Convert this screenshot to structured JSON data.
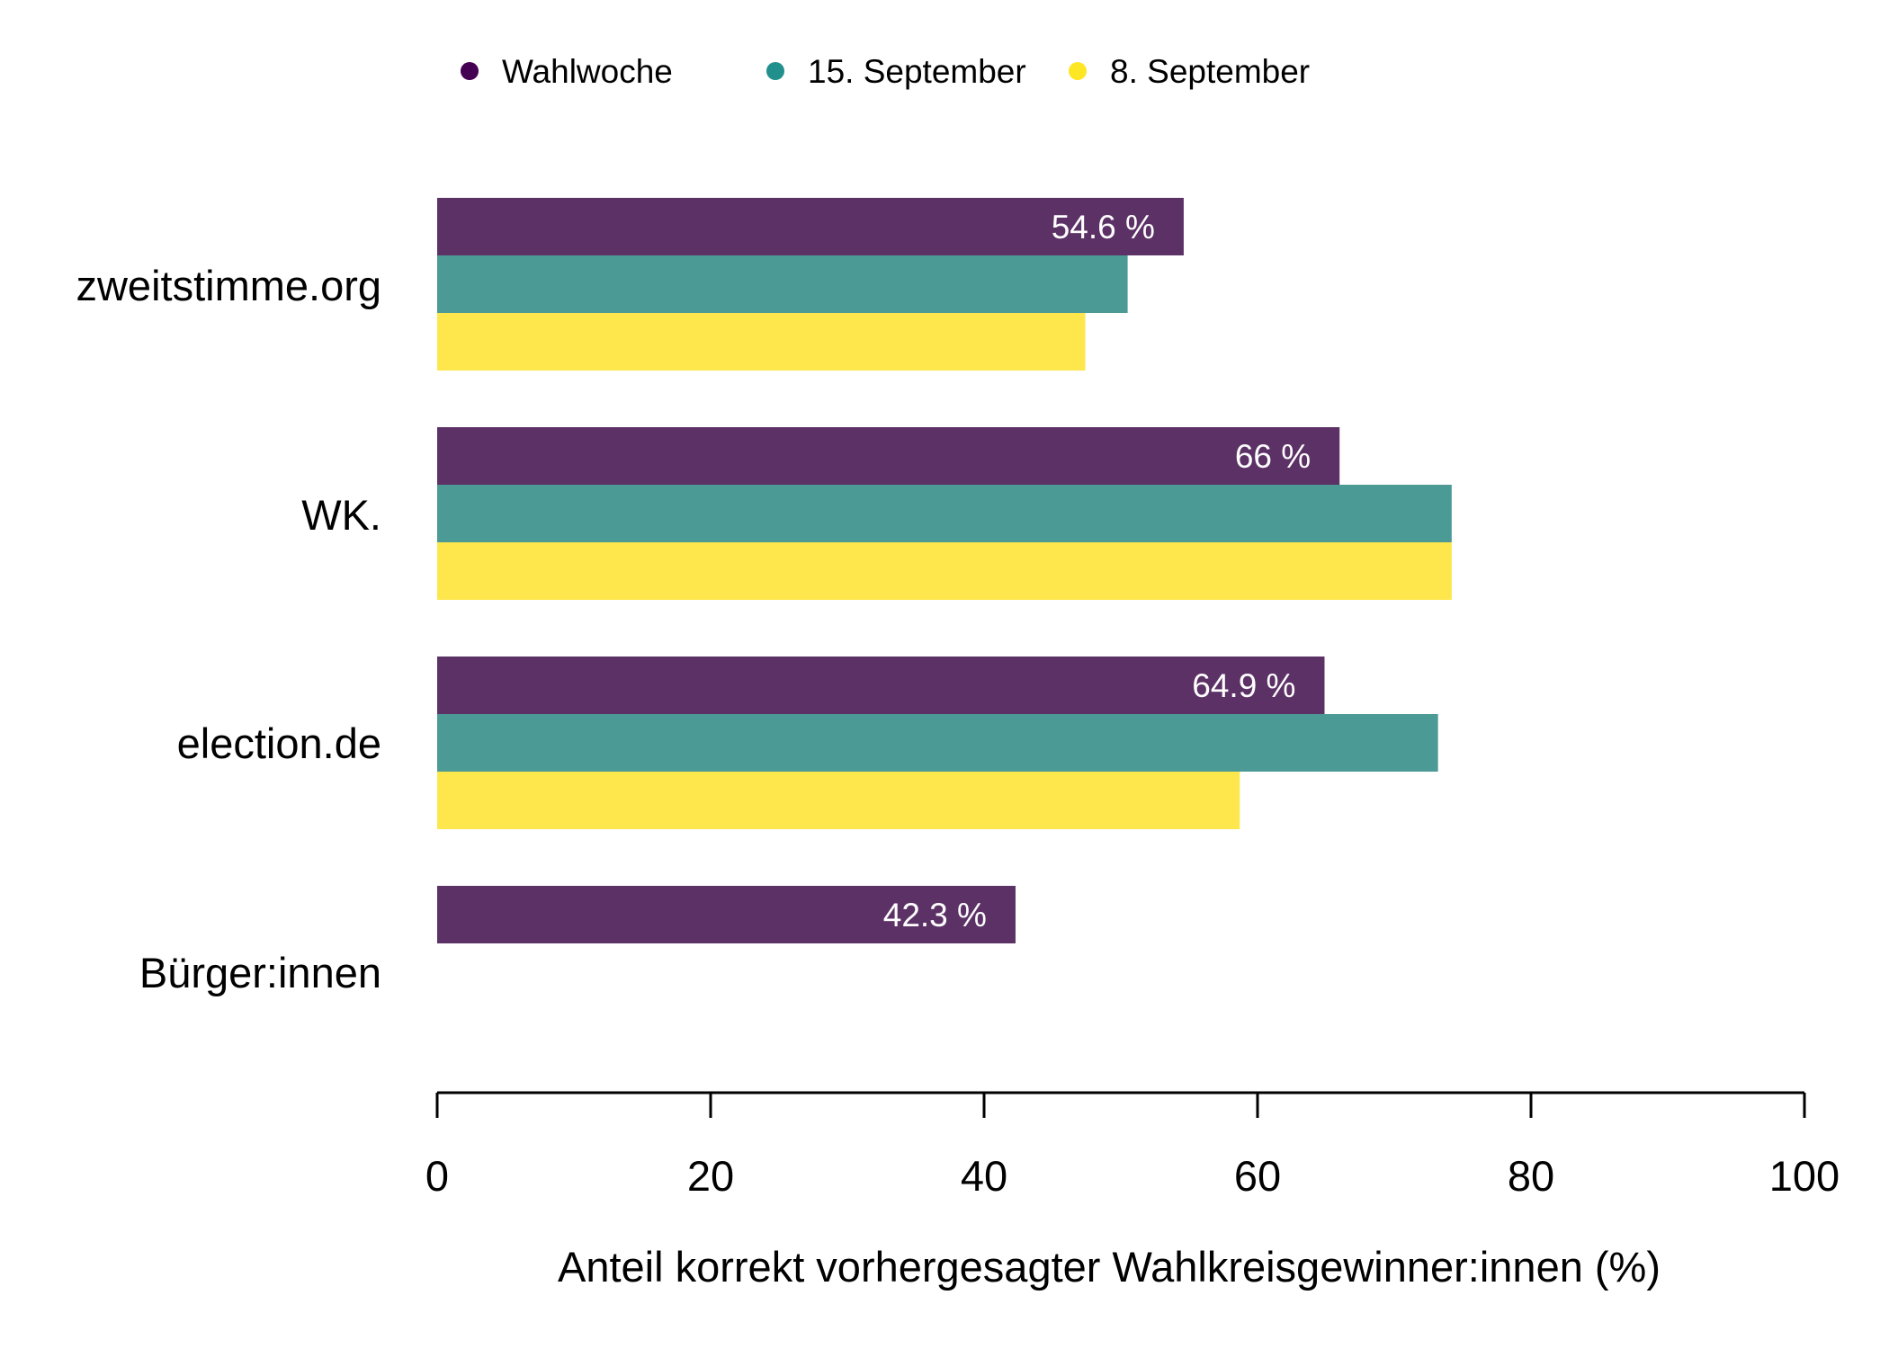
{
  "chart_data": {
    "type": "bar",
    "orientation": "horizontal",
    "categories": [
      "zweitstimme.org",
      "WK.",
      "election.de",
      "Bürger:innen"
    ],
    "series": [
      {
        "name": "Wahlwoche",
        "color": "#5C3166",
        "legend_color": "#440154",
        "values": [
          54.6,
          66.0,
          64.9,
          42.3
        ]
      },
      {
        "name": "15. September",
        "color": "#4B9A95",
        "legend_color": "#21908C",
        "values": [
          50.5,
          74.2,
          73.2,
          null
        ]
      },
      {
        "name": "8. September",
        "color": "#FDE74C",
        "legend_color": "#FDE725",
        "values": [
          47.4,
          74.2,
          58.7,
          null
        ]
      }
    ],
    "bar_labels": [
      "54.6 %",
      "66 %",
      "64.9 %",
      "42.3 %"
    ],
    "xlim": [
      0,
      100
    ],
    "xticks": [
      0,
      20,
      40,
      60,
      80,
      100
    ],
    "xtick_labels": [
      "0",
      "20",
      "40",
      "60",
      "80",
      "100"
    ],
    "xlabel": "Anteil korrekt vorhergesagter Wahlkreisgewinner:innen (%)",
    "ylabel": "",
    "title": "",
    "legend_position": "top",
    "grid": false
  }
}
